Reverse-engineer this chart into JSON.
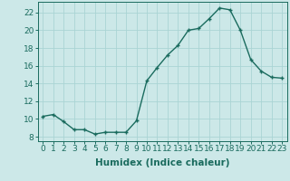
{
  "x": [
    0,
    1,
    2,
    3,
    4,
    5,
    6,
    7,
    8,
    9,
    10,
    11,
    12,
    13,
    14,
    15,
    16,
    17,
    18,
    19,
    20,
    21,
    22,
    23
  ],
  "y": [
    10.3,
    10.5,
    9.7,
    8.8,
    8.8,
    8.3,
    8.5,
    8.5,
    8.5,
    9.8,
    14.3,
    15.8,
    17.2,
    18.3,
    20.0,
    20.2,
    21.3,
    22.5,
    22.3,
    20.0,
    16.7,
    15.4,
    14.7,
    14.6
  ],
  "line_color": "#1a6b5e",
  "marker": "+",
  "bg_color": "#cce8e8",
  "grid_color": "#aad4d4",
  "xlabel": "Humidex (Indice chaleur)",
  "ylabel_ticks": [
    8,
    10,
    12,
    14,
    16,
    18,
    20,
    22
  ],
  "xlim": [
    -0.5,
    23.5
  ],
  "ylim": [
    7.5,
    23.2
  ],
  "xlabel_fontsize": 7.5,
  "tick_fontsize": 6.5
}
